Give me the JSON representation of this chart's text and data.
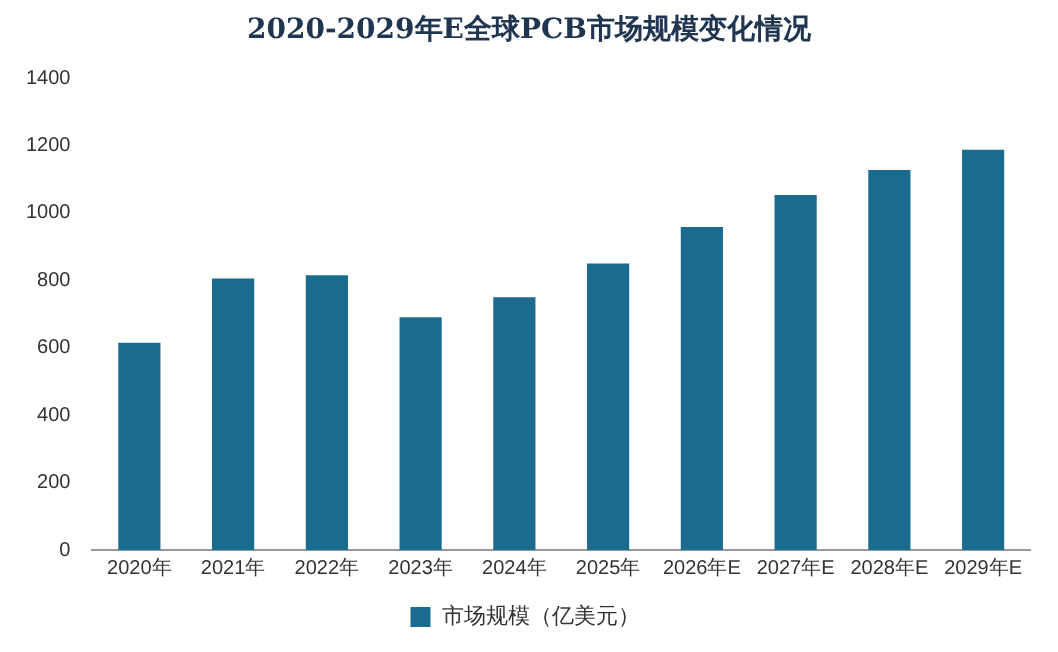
{
  "chart_data": {
    "type": "bar",
    "title": "2020-2029年E全球PCB市场规模变化情况",
    "categories": [
      "2020年",
      "2021年",
      "2022年",
      "2023年",
      "2024年",
      "2025年",
      "2026年E",
      "2027年E",
      "2028年E",
      "2029年E"
    ],
    "series": [
      {
        "name": "市场规模（亿美元）",
        "color": "#1b6b8e",
        "values": [
          615,
          805,
          815,
          690,
          750,
          850,
          958,
          1053,
          1127,
          1187
        ]
      }
    ],
    "ylim": [
      0,
      1400
    ],
    "yticks": [
      0,
      200,
      400,
      600,
      800,
      1000,
      1200,
      1400
    ],
    "grid": false,
    "legend": "bottom"
  }
}
